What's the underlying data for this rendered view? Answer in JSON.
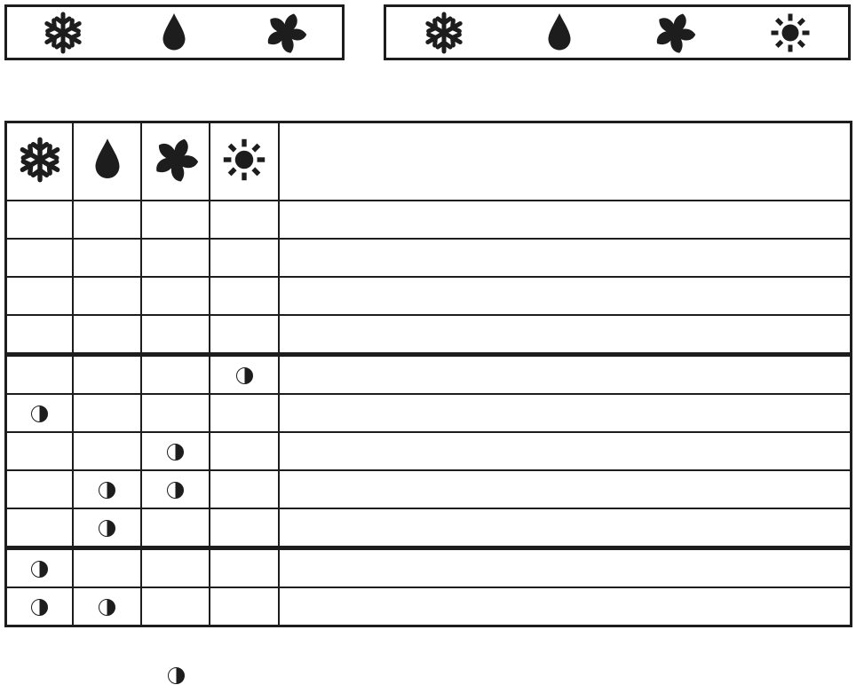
{
  "colors": {
    "ink": "#1d1d1d",
    "paper": "#ffffff"
  },
  "icon_names": {
    "snowflake": "snowflake-icon",
    "drop": "drop-icon",
    "fan": "fan-icon",
    "sun": "sun-icon"
  },
  "legend_boxes": [
    {
      "id": "legend-box-1",
      "icons": [
        "snowflake",
        "drop",
        "fan"
      ]
    },
    {
      "id": "legend-box-2",
      "icons": [
        "snowflake",
        "drop",
        "fan",
        "sun"
      ]
    }
  ],
  "mode_table": {
    "columns": [
      "snowflake",
      "drop",
      "fan",
      "sun",
      "blank"
    ],
    "marker_symbol": "half-filled-circle",
    "sections": [
      {
        "rows": [
          [
            0,
            0,
            0,
            0,
            0
          ],
          [
            0,
            0,
            0,
            0,
            0
          ],
          [
            0,
            0,
            0,
            0,
            0
          ],
          [
            0,
            0,
            0,
            0,
            0
          ]
        ]
      },
      {
        "rows": [
          [
            0,
            0,
            0,
            1,
            0
          ],
          [
            1,
            0,
            0,
            0,
            0
          ],
          [
            0,
            0,
            1,
            0,
            0
          ],
          [
            0,
            1,
            1,
            0,
            0
          ],
          [
            0,
            1,
            0,
            0,
            0
          ]
        ]
      },
      {
        "rows": [
          [
            1,
            0,
            0,
            0,
            0
          ],
          [
            1,
            1,
            0,
            0,
            0
          ]
        ]
      }
    ]
  },
  "footnote": {
    "marker_symbol": "half-filled-circle"
  }
}
